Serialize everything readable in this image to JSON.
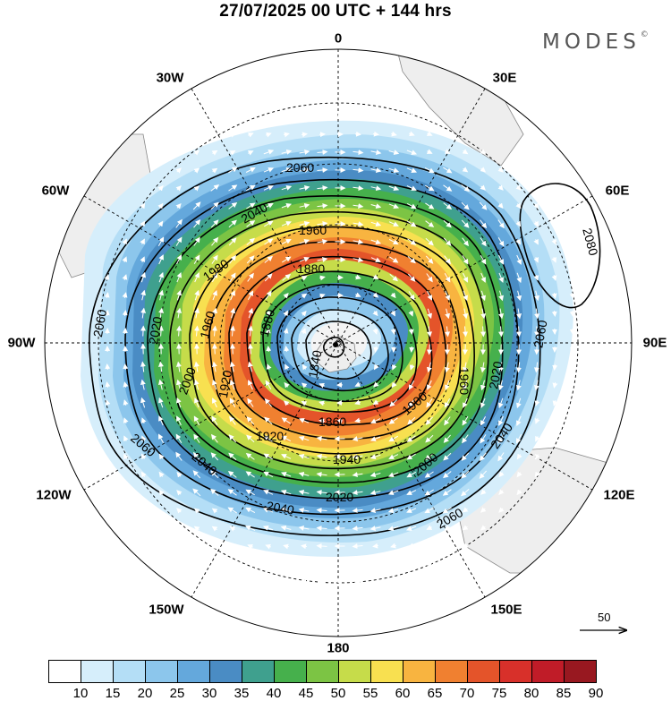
{
  "title": "27/07/2025  00 UTC  + 144 hrs",
  "brand": {
    "name": "MODES",
    "mark": "©"
  },
  "longitude_labels": {
    "north": "0",
    "east30": "30E",
    "east60": "60E",
    "east90": "90E",
    "east120": "120E",
    "east150": "150E",
    "south": "180",
    "west150": "150W",
    "west120": "120W",
    "west90": "90W",
    "west60": "60W",
    "west30": "30W"
  },
  "contour_labels": {
    "c1840": "1840",
    "c1860": "1860",
    "c1880a": "1880",
    "c1880b": "1880",
    "c1900": "1900",
    "c1920a": "1920",
    "c1920b": "1920",
    "c1940": "1940",
    "c1960a": "1960",
    "c1960b": "1960",
    "c1960c": "1960",
    "c1980": "1980",
    "c2000a": "2000",
    "c2000b": "2000",
    "c2020a": "2020",
    "c2020b": "2020",
    "c2020c": "2020",
    "c2040a": "2040",
    "c2040b": "2040",
    "c2040c": "2040",
    "c2040d": "2040",
    "c2060a": "2060",
    "c2060b": "2060",
    "c2060c": "2060",
    "c2060d": "2060",
    "c2060e": "2060",
    "c2080": "2080"
  },
  "reference_vector": {
    "label": "50"
  },
  "colorbar": {
    "ticks": [
      "10",
      "15",
      "20",
      "25",
      "30",
      "35",
      "40",
      "45",
      "50",
      "55",
      "60",
      "65",
      "70",
      "75",
      "80",
      "85",
      "90"
    ],
    "colors": [
      "#ffffff",
      "#d6eefb",
      "#b4def6",
      "#8cc6ec",
      "#64a8dc",
      "#4a8cc4",
      "#3fa08e",
      "#46b04c",
      "#7cc444",
      "#c6dc4a",
      "#f8e050",
      "#f8b440",
      "#f08030",
      "#e4542a",
      "#d8302a",
      "#c01c28",
      "#981820"
    ]
  }
}
